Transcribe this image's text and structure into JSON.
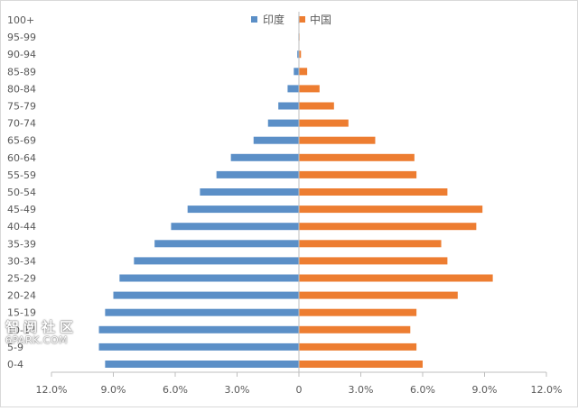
{
  "chart_data": {
    "type": "bar",
    "orientation": "horizontal-diverging",
    "categories": [
      "0-4",
      "5-9",
      "10-14",
      "15-19",
      "20-24",
      "25-29",
      "30-34",
      "35-39",
      "40-44",
      "45-49",
      "50-54",
      "55-59",
      "60-64",
      "65-69",
      "70-74",
      "75-79",
      "80-84",
      "85-89",
      "90-94",
      "95-99",
      "100+"
    ],
    "y_tick_labels": [
      "0-4",
      "5-9",
      "10-14",
      "15-19",
      "20-24",
      "25-29",
      "30-34",
      "35-39",
      "40-44",
      "45-49",
      "50-54",
      "55-59",
      "60-64",
      "65-69",
      "70-74",
      "75-79",
      "80-84",
      "85-89",
      "90-94",
      "95-99",
      "100+"
    ],
    "series": [
      {
        "name": "印度",
        "color": "#5b8fc7",
        "side": "left",
        "values": [
          9.4,
          9.7,
          9.7,
          9.4,
          9.0,
          8.7,
          8.0,
          7.0,
          6.2,
          5.4,
          4.8,
          4.0,
          3.3,
          2.2,
          1.5,
          1.0,
          0.55,
          0.25,
          0.08,
          0.02,
          0.01
        ]
      },
      {
        "name": "中国",
        "color": "#ed7d31",
        "side": "right",
        "values": [
          6.0,
          5.7,
          5.4,
          5.7,
          7.7,
          9.4,
          7.2,
          6.9,
          8.6,
          8.9,
          7.2,
          5.7,
          5.6,
          3.7,
          2.4,
          1.7,
          1.0,
          0.4,
          0.1,
          0.03,
          0.01
        ]
      }
    ],
    "x_tick_labels": [
      "12.0%",
      "9.0%",
      "6.0%",
      "3.0%",
      "0",
      "3.0%",
      "6.0%",
      "9.0%",
      "12.0%"
    ],
    "x_tick_values": [
      -12,
      -9,
      -6,
      -3,
      0,
      3,
      6,
      9,
      12
    ],
    "xlim": [
      -12,
      12
    ],
    "grid": false,
    "legend_position": "top"
  },
  "watermark": {
    "line1": "智阅社区",
    "line2": "6PARK.COM"
  }
}
